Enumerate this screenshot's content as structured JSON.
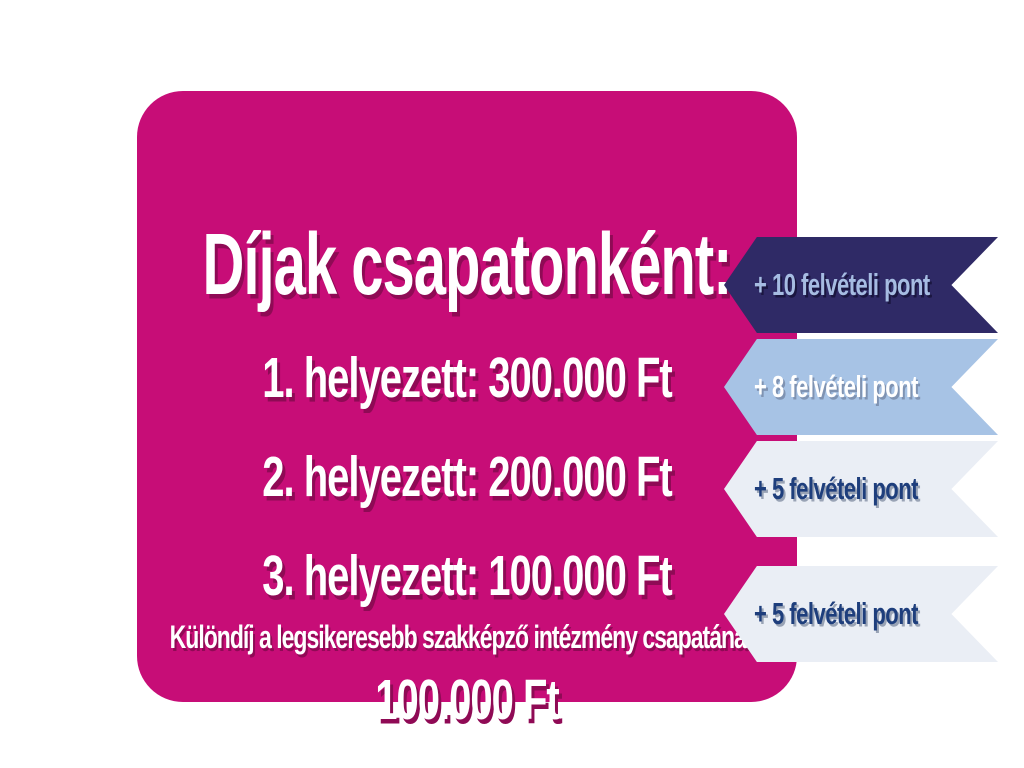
{
  "slide": {
    "title": "Díjak csapatonként:",
    "rows": [
      {
        "label": "1. helyezett: 300.000 Ft",
        "badge": "+ 10 felvételi pont"
      },
      {
        "label": "2. helyezett: 200.000 Ft",
        "badge": "+ 8 felvételi pont"
      },
      {
        "label": "3. helyezett: 100.000 Ft",
        "badge": "+ 5 felvételi pont"
      }
    ],
    "special": {
      "label": "Különdíj a legsikeresebb szakképző intézmény csapatának:",
      "amount": "100.000 Ft",
      "badge": "+ 5 felvételi pont"
    },
    "colors": {
      "magenta": "#C70D77",
      "navy": "#2F2A66",
      "navy-shadow": "#1A1640",
      "periwinkle": "#A6BCE2",
      "lightblue": "#A7C3E5",
      "blue-shadow": "#7F93B2",
      "pale": "#EAEEF5",
      "navytext": "#1E3E7C",
      "gray-shadow": "#99A3B5",
      "text-shadow-dark": "#8F0A55"
    }
  }
}
